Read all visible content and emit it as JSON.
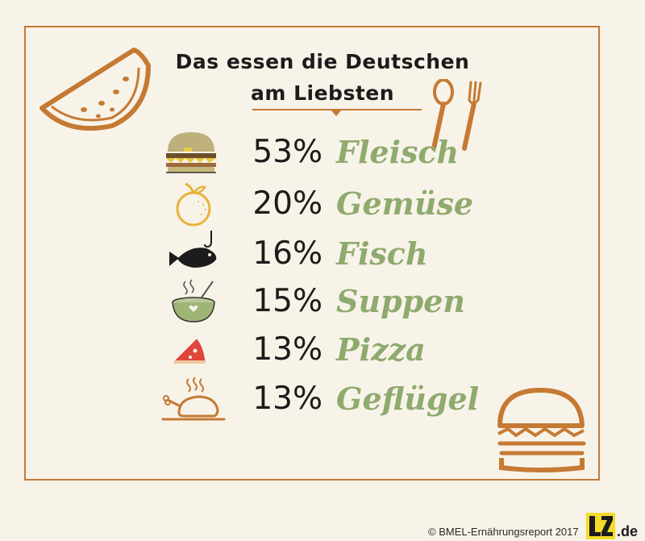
{
  "title": {
    "line1": "Das essen die Deutschen",
    "line2": "am Liebsten"
  },
  "rows": [
    {
      "percent": "53%",
      "label": "Fleisch",
      "icon": "burger-icon"
    },
    {
      "percent": "20%",
      "label": "Gemüse",
      "icon": "orange-icon"
    },
    {
      "percent": "16%",
      "label": "Fisch",
      "icon": "fish-icon"
    },
    {
      "percent": "15%",
      "label": "Suppen",
      "icon": "soup-bowl-icon"
    },
    {
      "percent": "13%",
      "label": "Pizza",
      "icon": "pizza-slice-icon"
    },
    {
      "percent": "13%",
      "label": "Geflügel",
      "icon": "roast-chicken-icon"
    }
  ],
  "footer": {
    "credit": "© BMEL-Ernährungsreport 2017",
    "logo_text": "LZ.de"
  },
  "colors": {
    "background": "#f8f3e8",
    "frame": "#c57a34",
    "label_green": "#8faa6e",
    "text_dark": "#1c1c1c"
  }
}
